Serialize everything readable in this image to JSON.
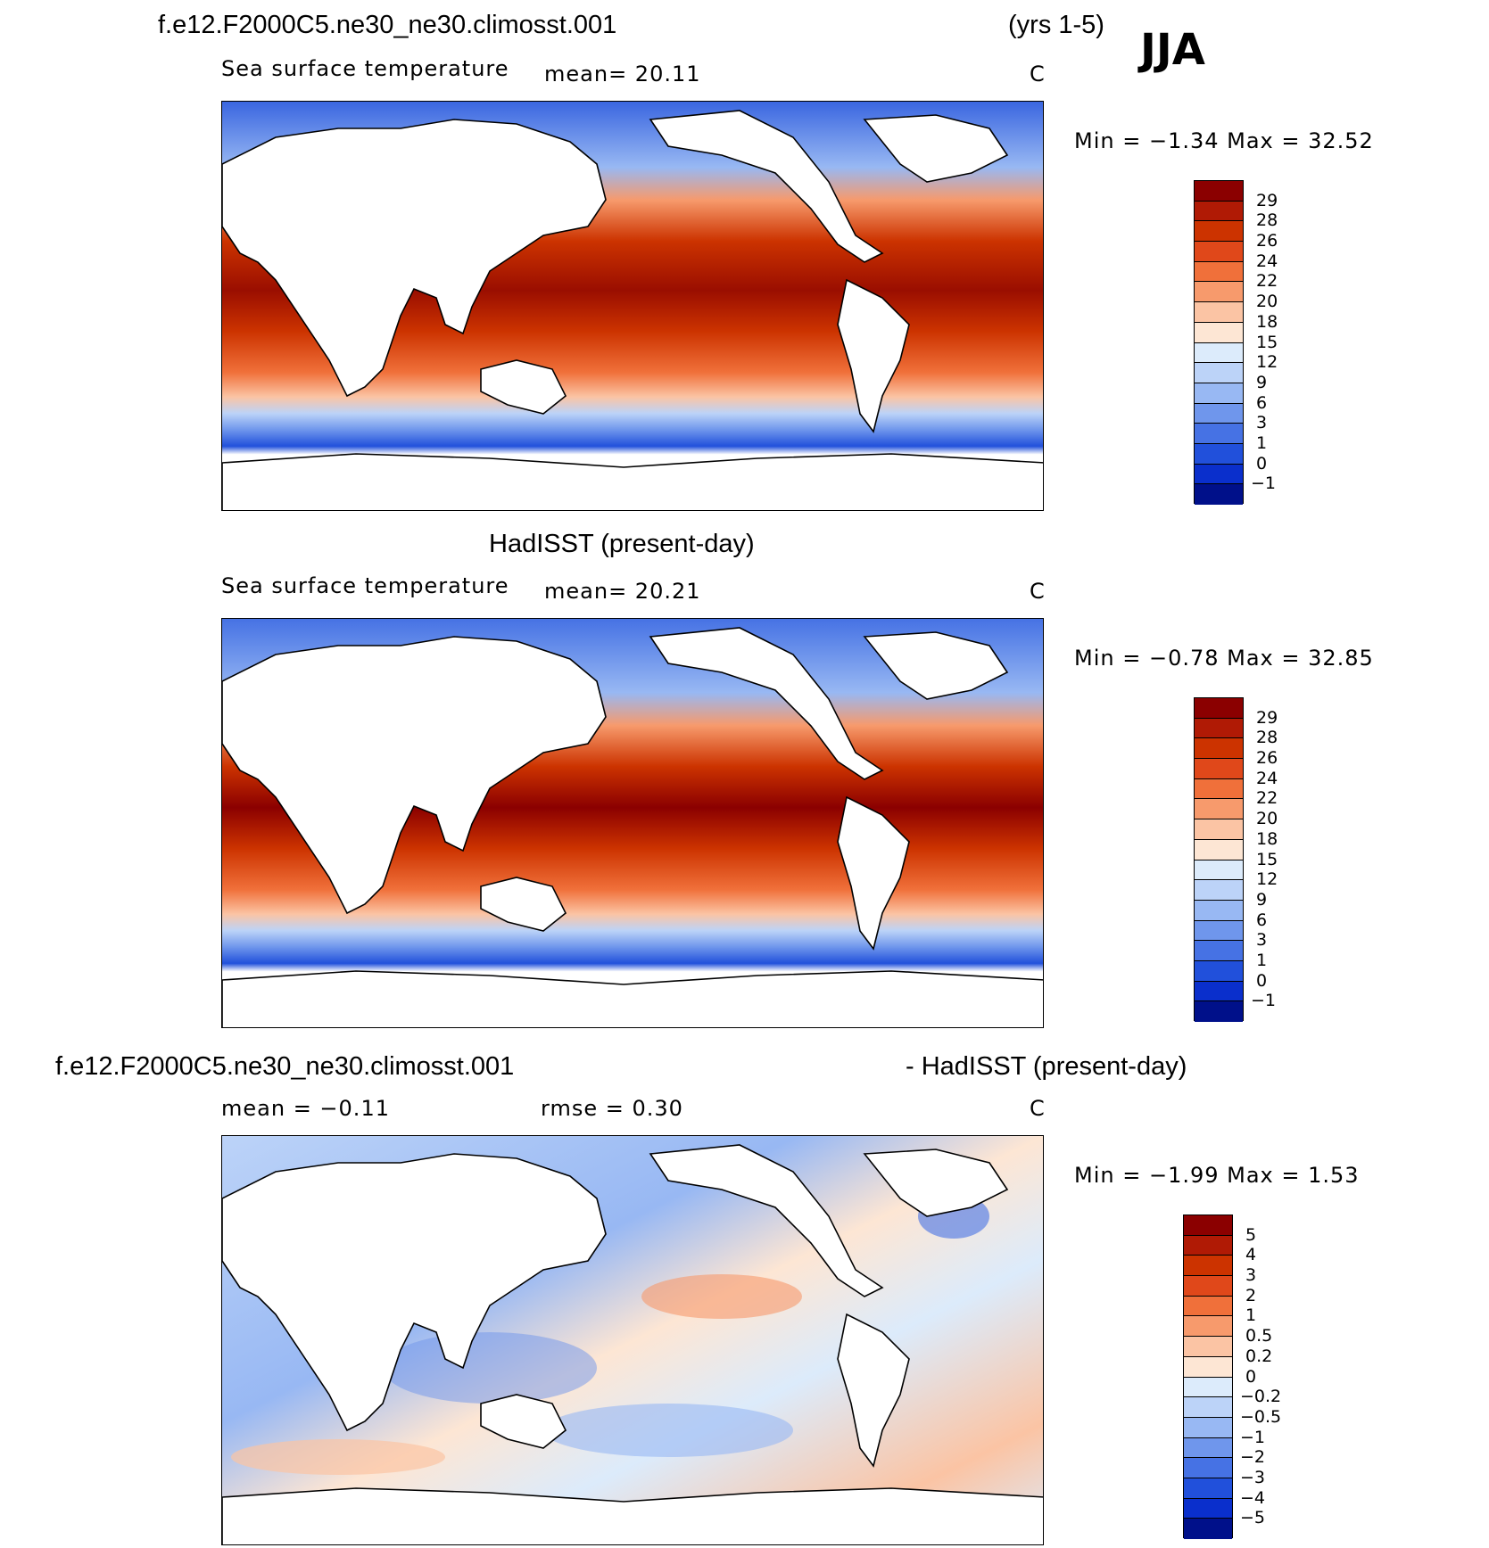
{
  "season": "JJA",
  "years": "(yrs 1-5)",
  "panels": [
    {
      "title": "f.e12.F2000C5.ne30_ne30.climosst.001",
      "variable": "Sea surface temperature",
      "stats": "mean=   20.11",
      "units": "C",
      "minmax": "Min  =   −1.34  Max  =    32.52",
      "colorbar_labels": [
        "29",
        "28",
        "26",
        "24",
        "22",
        "20",
        "18",
        "15",
        "12",
        "9",
        "6",
        "3",
        "1",
        "0",
        "−1"
      ],
      "colorbar_colors": [
        "#8b0000",
        "#b01a05",
        "#cc3300",
        "#e0481a",
        "#f0703a",
        "#f79a6c",
        "#fbc4a4",
        "#fde6d4",
        "#dcebfb",
        "#bcd3f8",
        "#98b8f3",
        "#6f96ec",
        "#4672e4",
        "#2150db",
        "#0a2fcc",
        "#00108a"
      ]
    },
    {
      "title": "HadISST (present-day)",
      "variable": "Sea surface temperature",
      "stats": "mean=   20.21",
      "units": "C",
      "minmax": "Min  =   −0.78  Max  =    32.85",
      "colorbar_labels": [
        "29",
        "28",
        "26",
        "24",
        "22",
        "20",
        "18",
        "15",
        "12",
        "9",
        "6",
        "3",
        "1",
        "0",
        "−1"
      ],
      "colorbar_colors": [
        "#8b0000",
        "#b01a05",
        "#cc3300",
        "#e0481a",
        "#f0703a",
        "#f79a6c",
        "#fbc4a4",
        "#fde6d4",
        "#dcebfb",
        "#bcd3f8",
        "#98b8f3",
        "#6f96ec",
        "#4672e4",
        "#2150db",
        "#0a2fcc",
        "#00108a"
      ]
    },
    {
      "title": "f.e12.F2000C5.ne30_ne30.climosst.001",
      "title_suffix": "- HadISST (present-day)",
      "mean_label": "mean  =   −0.11",
      "rmse_label": "rmse  =     0.30",
      "units": "C",
      "minmax": "Min  =   −1.99  Max  =      1.53",
      "colorbar_labels": [
        "5",
        "4",
        "3",
        "2",
        "1",
        "0.5",
        "0.2",
        "0",
        "−0.2",
        "−0.5",
        "−1",
        "−2",
        "−3",
        "−4",
        "−5"
      ],
      "colorbar_colors": [
        "#8b0000",
        "#b01a05",
        "#cc3300",
        "#e0481a",
        "#f0703a",
        "#f79a6c",
        "#fbc4a4",
        "#fde6d4",
        "#dcebfb",
        "#bcd3f8",
        "#98b8f3",
        "#6f96ec",
        "#4672e4",
        "#2150db",
        "#0a2fcc",
        "#00108a"
      ]
    }
  ]
}
